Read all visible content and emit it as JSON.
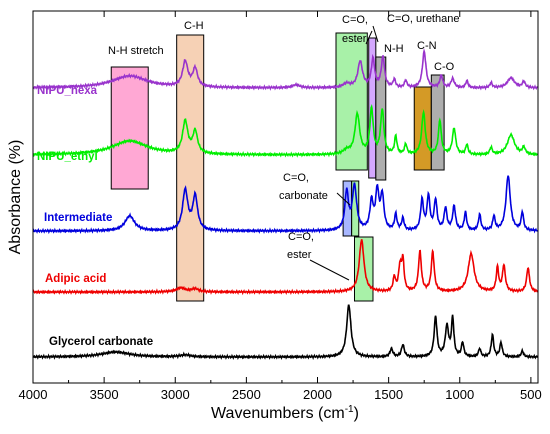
{
  "chart_data": {
    "type": "line",
    "xlabel": "Wavenumbers (cm",
    "xlabel_sup": "-1",
    "xlabel_close": ")",
    "ylabel": "Absorbance (%)",
    "xlim": [
      4000,
      450
    ],
    "x_reversed": true,
    "grid": false,
    "x_ticks": [
      4000,
      3500,
      3000,
      2500,
      2000,
      1500,
      1000,
      500
    ],
    "series": [
      {
        "name": "NIPU_hexa",
        "color": "#9933cc",
        "baseline": 88,
        "peaks": [
          [
            3320,
            150,
            12
          ],
          [
            2930,
            22,
            25
          ],
          [
            2860,
            20,
            18
          ],
          [
            2150,
            30,
            3
          ],
          [
            1795,
            30,
            4
          ],
          [
            1700,
            20,
            26
          ],
          [
            1610,
            14,
            28
          ],
          [
            1540,
            14,
            30
          ],
          [
            1460,
            10,
            8
          ],
          [
            1380,
            10,
            7
          ],
          [
            1250,
            15,
            36
          ],
          [
            1130,
            12,
            12
          ],
          [
            1050,
            14,
            9
          ],
          [
            950,
            10,
            7
          ],
          [
            780,
            10,
            5
          ],
          [
            640,
            30,
            10
          ],
          [
            550,
            12,
            6
          ]
        ]
      },
      {
        "name": "NIPU_ethyl",
        "color": "#00ee00",
        "baseline": 155,
        "peaks": [
          [
            3320,
            150,
            14
          ],
          [
            2930,
            22,
            32
          ],
          [
            2860,
            20,
            22
          ],
          [
            1795,
            30,
            4
          ],
          [
            1720,
            20,
            40
          ],
          [
            1620,
            14,
            45
          ],
          [
            1545,
            14,
            44
          ],
          [
            1450,
            10,
            18
          ],
          [
            1380,
            10,
            10
          ],
          [
            1255,
            15,
            42
          ],
          [
            1140,
            12,
            34
          ],
          [
            1040,
            14,
            26
          ],
          [
            950,
            10,
            10
          ],
          [
            780,
            10,
            7
          ],
          [
            640,
            30,
            20
          ],
          [
            550,
            12,
            7
          ]
        ]
      },
      {
        "name": "Intermediate",
        "color": "#0000dd",
        "baseline": 231,
        "peaks": [
          [
            3320,
            40,
            15
          ],
          [
            2930,
            22,
            40
          ],
          [
            2860,
            20,
            34
          ],
          [
            1795,
            15,
            38
          ],
          [
            1740,
            18,
            44
          ],
          [
            1620,
            14,
            28
          ],
          [
            1580,
            14,
            38
          ],
          [
            1545,
            14,
            34
          ],
          [
            1450,
            10,
            16
          ],
          [
            1400,
            10,
            12
          ],
          [
            1265,
            12,
            30
          ],
          [
            1220,
            12,
            34
          ],
          [
            1170,
            12,
            30
          ],
          [
            1100,
            12,
            22
          ],
          [
            1040,
            12,
            24
          ],
          [
            960,
            10,
            18
          ],
          [
            860,
            10,
            16
          ],
          [
            760,
            10,
            14
          ],
          [
            660,
            18,
            55
          ],
          [
            560,
            10,
            18
          ]
        ]
      },
      {
        "name": "Adipic acid",
        "color": "#ee0000",
        "baseline": 292,
        "peaks": [
          [
            2960,
            40,
            4
          ],
          [
            2860,
            30,
            3
          ],
          [
            1690,
            20,
            52
          ],
          [
            1460,
            10,
            14
          ],
          [
            1420,
            12,
            24
          ],
          [
            1400,
            10,
            30
          ],
          [
            1280,
            12,
            40
          ],
          [
            1190,
            12,
            40
          ],
          [
            920,
            25,
            38
          ],
          [
            735,
            10,
            24
          ],
          [
            690,
            12,
            26
          ],
          [
            520,
            12,
            24
          ]
        ]
      },
      {
        "name": "Glycerol carbonate",
        "color": "#000000",
        "baseline": 357,
        "peaks": [
          [
            3420,
            120,
            5
          ],
          [
            2930,
            40,
            2
          ],
          [
            1780,
            18,
            52
          ],
          [
            1480,
            12,
            8
          ],
          [
            1400,
            12,
            12
          ],
          [
            1170,
            12,
            40
          ],
          [
            1090,
            14,
            30
          ],
          [
            1050,
            10,
            38
          ],
          [
            980,
            10,
            14
          ],
          [
            860,
            10,
            8
          ],
          [
            770,
            10,
            22
          ],
          [
            710,
            10,
            14
          ],
          [
            560,
            10,
            6
          ]
        ]
      }
    ],
    "annotations": [
      {
        "id": "nh",
        "x1": 3450,
        "x2": 3190,
        "fill": "#ff99cc",
        "label": "N-H stretch"
      },
      {
        "id": "ch",
        "x1": 2990,
        "x2": 2800,
        "fill": "#f5c9a8",
        "label": "C-H"
      },
      {
        "id": "co-ester-upper",
        "x1": 1870,
        "x2": 1650,
        "fill": "#99ee99",
        "label_line1": "C=O,",
        "label_line2": "ester"
      },
      {
        "id": "co-urethane",
        "x1": 1640,
        "x2": 1590,
        "fill": "#cc99ff",
        "label": "C=O, urethane"
      },
      {
        "id": "nh2",
        "x1": 1590,
        "x2": 1520,
        "fill": "#a0a0a0",
        "label": "N-H"
      },
      {
        "id": "cn",
        "x1": 1320,
        "x2": 1200,
        "fill": "#cc8800",
        "label": "C-N"
      },
      {
        "id": "co",
        "x1": 1200,
        "x2": 1110,
        "fill": "#a0a0a0",
        "label": "C-O"
      },
      {
        "id": "carb1",
        "x1": 1820,
        "x2": 1760,
        "fill": "#99aaff",
        "label_line1": "C=O,",
        "label_line2": "carbonate"
      },
      {
        "id": "carb2",
        "x1": 1760,
        "x2": 1710,
        "fill": "#99ee99"
      },
      {
        "id": "ester-lower",
        "x1": 1740,
        "x2": 1610,
        "fill": "#99ee99",
        "label_line1": "C=O,",
        "label_line2": "ester"
      }
    ]
  }
}
